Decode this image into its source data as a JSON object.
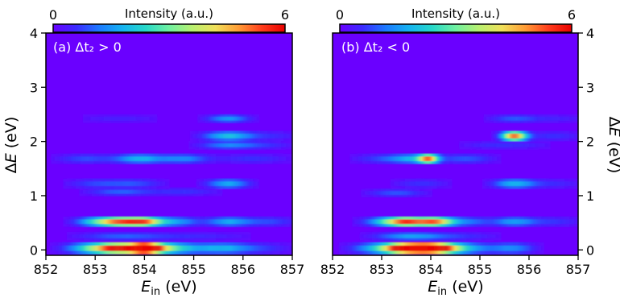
{
  "colors": {
    "background": "#6a00ff",
    "colormap": [
      "#6a00ff",
      "#3b2cff",
      "#1c7bff",
      "#16b3f0",
      "#27d8c8",
      "#6ff0a0",
      "#b8f070",
      "#f0e05a",
      "#ff9b35",
      "#ff3d1c",
      "#e80000"
    ]
  },
  "chart_data": [
    {
      "type": "heatmap",
      "panel_label": "(a) Δt₂ > 0",
      "xlabel": "E_in (eV)",
      "ylabel": "ΔE (eV)",
      "xlim": [
        852,
        857
      ],
      "ylim": [
        -0.1,
        4.0
      ],
      "xticks": [
        "852",
        "853",
        "854",
        "855",
        "856",
        "857"
      ],
      "yticks": [
        "0",
        "1",
        "2",
        "3",
        "4"
      ],
      "colorbar": {
        "label": "Intensity (a.u.)",
        "min": "0",
        "max": "6",
        "range": [
          0,
          6
        ]
      },
      "bands": [
        {
          "dE": 0.03,
          "width": 0.035,
          "peaks": [
            {
              "x": 853.0,
              "amp": 2.6,
              "w": 0.4
            },
            {
              "x": 853.5,
              "amp": 4.6,
              "w": 0.32
            },
            {
              "x": 854.0,
              "amp": 5.8,
              "w": 0.22
            },
            {
              "x": 854.3,
              "amp": 3.0,
              "w": 0.35
            },
            {
              "x": 855.0,
              "amp": 1.3,
              "w": 0.5
            },
            {
              "x": 855.7,
              "amp": 1.2,
              "w": 0.35
            },
            {
              "x": 856.4,
              "amp": 0.6,
              "w": 0.4
            }
          ]
        },
        {
          "dE": 0.25,
          "width": 0.025,
          "peaks": [
            {
              "x": 853.5,
              "amp": 0.9,
              "w": 0.6
            },
            {
              "x": 855.0,
              "amp": 0.5,
              "w": 0.8
            }
          ]
        },
        {
          "dE": 0.52,
          "width": 0.03,
          "peaks": [
            {
              "x": 853.0,
              "amp": 1.8,
              "w": 0.3
            },
            {
              "x": 853.5,
              "amp": 4.4,
              "w": 0.3
            },
            {
              "x": 854.0,
              "amp": 4.0,
              "w": 0.25
            },
            {
              "x": 854.6,
              "amp": 1.6,
              "w": 0.35
            },
            {
              "x": 855.7,
              "amp": 1.6,
              "w": 0.3
            },
            {
              "x": 856.5,
              "amp": 0.8,
              "w": 0.4
            }
          ]
        },
        {
          "dE": 1.07,
          "width": 0.025,
          "peaks": [
            {
              "x": 853.5,
              "amp": 1.0,
              "w": 0.45
            },
            {
              "x": 854.8,
              "amp": 0.6,
              "w": 0.5
            }
          ]
        },
        {
          "dE": 1.22,
          "width": 0.03,
          "peaks": [
            {
              "x": 853.0,
              "amp": 0.7,
              "w": 0.4
            },
            {
              "x": 853.8,
              "amp": 0.8,
              "w": 0.4
            },
            {
              "x": 855.7,
              "amp": 1.7,
              "w": 0.3
            }
          ]
        },
        {
          "dE": 1.68,
          "width": 0.03,
          "peaks": [
            {
              "x": 852.8,
              "amp": 0.8,
              "w": 0.4
            },
            {
              "x": 853.9,
              "amp": 1.8,
              "w": 0.35
            },
            {
              "x": 854.8,
              "amp": 1.3,
              "w": 0.35
            },
            {
              "x": 856.2,
              "amp": 0.6,
              "w": 0.5
            }
          ]
        },
        {
          "dE": 1.93,
          "width": 0.025,
          "peaks": [
            {
              "x": 855.7,
              "amp": 1.3,
              "w": 0.4
            },
            {
              "x": 856.5,
              "amp": 0.5,
              "w": 0.4
            }
          ]
        },
        {
          "dE": 2.1,
          "width": 0.03,
          "peaks": [
            {
              "x": 855.7,
              "amp": 2.0,
              "w": 0.35
            },
            {
              "x": 856.6,
              "amp": 0.5,
              "w": 0.4
            }
          ]
        },
        {
          "dE": 2.42,
          "width": 0.025,
          "peaks": [
            {
              "x": 853.5,
              "amp": 0.4,
              "w": 0.6
            },
            {
              "x": 855.7,
              "amp": 1.5,
              "w": 0.3
            }
          ]
        }
      ]
    },
    {
      "type": "heatmap",
      "panel_label": "(b) Δt₂ < 0",
      "xlabel": "E_in (eV)",
      "ylabel": "ΔE (eV)",
      "xlim": [
        852,
        857
      ],
      "ylim": [
        -0.1,
        4.0
      ],
      "xticks": [
        "852",
        "853",
        "854",
        "855",
        "856",
        "857"
      ],
      "yticks": [
        "0",
        "1",
        "2",
        "3",
        "4"
      ],
      "colorbar": {
        "label": "Intensity (a.u.)",
        "min": "0",
        "max": "6",
        "range": [
          0,
          6
        ]
      },
      "bands": [
        {
          "dE": 0.03,
          "width": 0.035,
          "peaks": [
            {
              "x": 853.0,
              "amp": 2.0,
              "w": 0.4
            },
            {
              "x": 853.5,
              "amp": 5.6,
              "w": 0.3
            },
            {
              "x": 854.0,
              "amp": 6.0,
              "w": 0.3
            },
            {
              "x": 854.4,
              "amp": 2.4,
              "w": 0.35
            },
            {
              "x": 855.0,
              "amp": 0.8,
              "w": 0.4
            },
            {
              "x": 855.7,
              "amp": 1.2,
              "w": 0.3
            }
          ]
        },
        {
          "dE": 0.25,
          "width": 0.025,
          "peaks": [
            {
              "x": 853.6,
              "amp": 1.6,
              "w": 0.5
            },
            {
              "x": 854.7,
              "amp": 0.5,
              "w": 0.5
            }
          ]
        },
        {
          "dE": 0.52,
          "width": 0.03,
          "peaks": [
            {
              "x": 853.0,
              "amp": 1.3,
              "w": 0.3
            },
            {
              "x": 853.5,
              "amp": 5.0,
              "w": 0.3
            },
            {
              "x": 854.1,
              "amp": 4.2,
              "w": 0.25
            },
            {
              "x": 854.7,
              "amp": 1.2,
              "w": 0.35
            },
            {
              "x": 855.7,
              "amp": 1.5,
              "w": 0.3
            },
            {
              "x": 856.5,
              "amp": 0.6,
              "w": 0.4
            }
          ]
        },
        {
          "dE": 1.05,
          "width": 0.025,
          "peaks": [
            {
              "x": 853.3,
              "amp": 0.9,
              "w": 0.4
            }
          ]
        },
        {
          "dE": 1.22,
          "width": 0.03,
          "peaks": [
            {
              "x": 853.8,
              "amp": 0.6,
              "w": 0.4
            },
            {
              "x": 855.7,
              "amp": 1.8,
              "w": 0.3
            },
            {
              "x": 856.5,
              "amp": 0.5,
              "w": 0.4
            }
          ]
        },
        {
          "dE": 1.68,
          "width": 0.03,
          "peaks": [
            {
              "x": 853.0,
              "amp": 0.7,
              "w": 0.4
            },
            {
              "x": 853.6,
              "amp": 1.5,
              "w": 0.3
            },
            {
              "x": 853.95,
              "amp": 4.2,
              "w": 0.15
            },
            {
              "x": 854.7,
              "amp": 0.9,
              "w": 0.4
            }
          ]
        },
        {
          "dE": 1.93,
          "width": 0.025,
          "peaks": [
            {
              "x": 855.5,
              "amp": 0.6,
              "w": 0.6
            }
          ]
        },
        {
          "dE": 2.1,
          "width": 0.03,
          "peaks": [
            {
              "x": 855.7,
              "amp": 5.0,
              "w": 0.18
            },
            {
              "x": 856.5,
              "amp": 0.6,
              "w": 0.4
            }
          ]
        },
        {
          "dE": 2.42,
          "width": 0.025,
          "peaks": [
            {
              "x": 855.7,
              "amp": 0.9,
              "w": 0.35
            },
            {
              "x": 856.6,
              "amp": 0.4,
              "w": 0.4
            }
          ]
        }
      ]
    }
  ]
}
